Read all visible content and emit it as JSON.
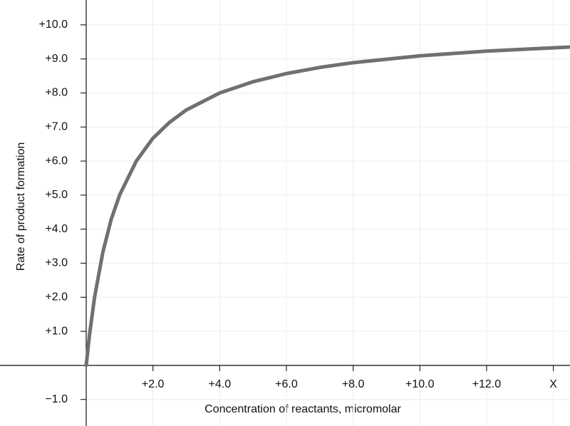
{
  "chart_data": {
    "type": "line",
    "x_label": "Concentration of reactants, micromolar",
    "y_label": "Rate of product formation",
    "x": [
      0,
      0.1,
      0.25,
      0.5,
      0.75,
      1,
      1.5,
      2,
      2.5,
      3,
      4,
      5,
      6,
      7,
      8,
      10,
      12,
      14.5
    ],
    "series": [
      {
        "color": "#707070",
        "values": [
          0,
          0.91,
          2.0,
          3.33,
          4.29,
          5.0,
          6.0,
          6.67,
          7.14,
          7.5,
          8.0,
          8.33,
          8.57,
          8.75,
          8.89,
          9.09,
          9.23,
          9.35
        ]
      }
    ],
    "xlim": [
      0,
      14.5
    ],
    "ylim": [
      -1.78,
      10.73
    ],
    "xticks": [
      {
        "value": 2,
        "label": "+2.0"
      },
      {
        "value": 4,
        "label": "+4.0"
      },
      {
        "value": 6,
        "label": "+6.0"
      },
      {
        "value": 8,
        "label": "+8.0"
      },
      {
        "value": 10,
        "label": "+10.0"
      },
      {
        "value": 12,
        "label": "+12.0"
      },
      {
        "value": 14,
        "label": "X"
      }
    ],
    "yticks": [
      {
        "value": -1,
        "label": "−1.0"
      },
      {
        "value": 1,
        "label": "+1.0"
      },
      {
        "value": 2,
        "label": "+2.0"
      },
      {
        "value": 3,
        "label": "+3.0"
      },
      {
        "value": 4,
        "label": "+4.0"
      },
      {
        "value": 5,
        "label": "+5.0"
      },
      {
        "value": 6,
        "label": "+6.0"
      },
      {
        "value": 7,
        "label": "+7.0"
      },
      {
        "value": 8,
        "label": "+8.0"
      },
      {
        "value": 9,
        "label": "+9.0"
      },
      {
        "value": 10,
        "label": "+10.0"
      }
    ],
    "grid": true
  }
}
